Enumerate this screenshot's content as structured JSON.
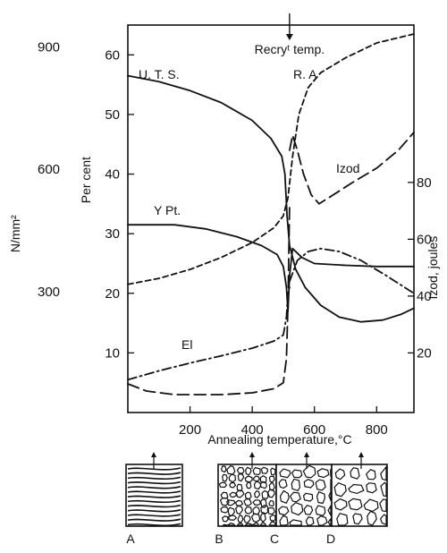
{
  "chart_data": {
    "type": "line",
    "xlabel": "Annealing temperature,°C",
    "xlim": [
      0,
      920
    ],
    "x_ticks": [
      200,
      400,
      600,
      800
    ],
    "left_axis_percent": {
      "label": "Per cent",
      "ylim": [
        0,
        65
      ],
      "ticks": [
        10,
        20,
        30,
        40,
        50,
        60
      ]
    },
    "left_axis_stress": {
      "label": "N/mm²",
      "ticks": [
        300,
        600,
        900
      ]
    },
    "right_axis": {
      "label": "Izod, joules",
      "ticks": [
        20,
        40,
        60,
        80
      ]
    },
    "annotation": {
      "text": "Recryᵗ temp.",
      "x": 520
    },
    "series": [
      {
        "name": "U. T. S.",
        "axis": "percent",
        "style": "solid",
        "points": [
          [
            0,
            56.5
          ],
          [
            100,
            55.5
          ],
          [
            200,
            54
          ],
          [
            300,
            52
          ],
          [
            400,
            49
          ],
          [
            460,
            46
          ],
          [
            495,
            43
          ],
          [
            505,
            40
          ],
          [
            512,
            33
          ],
          [
            520,
            28
          ],
          [
            540,
            24
          ],
          [
            570,
            21
          ],
          [
            620,
            18
          ],
          [
            680,
            16
          ],
          [
            750,
            15.2
          ],
          [
            820,
            15.5
          ],
          [
            880,
            16.5
          ],
          [
            920,
            17.5
          ]
        ]
      },
      {
        "name": "Y Pt.",
        "axis": "percent",
        "style": "solid",
        "points": [
          [
            0,
            31.5
          ],
          [
            150,
            31.5
          ],
          [
            250,
            30.8
          ],
          [
            350,
            29.5
          ],
          [
            430,
            28
          ],
          [
            480,
            26.5
          ],
          [
            500,
            24.5
          ],
          [
            510,
            21
          ],
          [
            515,
            17
          ],
          [
            520,
            23
          ],
          [
            530,
            27.5
          ],
          [
            560,
            26
          ],
          [
            600,
            25
          ],
          [
            700,
            24.7
          ],
          [
            800,
            24.5
          ],
          [
            920,
            24.5
          ]
        ]
      },
      {
        "name": "R. A",
        "axis": "percent",
        "style": "short-dash",
        "points": [
          [
            0,
            21.5
          ],
          [
            100,
            22.5
          ],
          [
            200,
            24
          ],
          [
            300,
            26
          ],
          [
            400,
            28.5
          ],
          [
            470,
            31
          ],
          [
            500,
            33
          ],
          [
            515,
            36
          ],
          [
            530,
            43
          ],
          [
            550,
            50
          ],
          [
            580,
            54.5
          ],
          [
            620,
            57
          ],
          [
            700,
            59.5
          ],
          [
            800,
            62
          ],
          [
            920,
            63.5
          ]
        ]
      },
      {
        "name": "Izod",
        "axis": "percent",
        "style": "long-dash",
        "points": [
          [
            520,
            44
          ],
          [
            530,
            46.5
          ],
          [
            545,
            44
          ],
          [
            565,
            40
          ],
          [
            590,
            36.5
          ],
          [
            615,
            35
          ],
          [
            660,
            36.5
          ],
          [
            720,
            38.5
          ],
          [
            800,
            41
          ],
          [
            870,
            44
          ],
          [
            920,
            47
          ]
        ]
      },
      {
        "name": "",
        "axis": "percent",
        "style": "dash-dot",
        "points": [
          [
            520,
            22
          ],
          [
            545,
            25.5
          ],
          [
            580,
            27
          ],
          [
            620,
            27.5
          ],
          [
            680,
            27
          ],
          [
            750,
            25.5
          ],
          [
            830,
            23
          ],
          [
            920,
            20
          ]
        ]
      },
      {
        "name": "El",
        "axis": "percent",
        "style": "dash-dot",
        "points": [
          [
            0,
            5.5
          ],
          [
            100,
            7
          ],
          [
            200,
            8.3
          ],
          [
            300,
            9.5
          ],
          [
            400,
            10.8
          ],
          [
            470,
            12
          ],
          [
            500,
            13
          ],
          [
            510,
            16
          ],
          [
            515,
            20
          ],
          [
            520,
            21
          ]
        ]
      },
      {
        "name": "",
        "axis": "percent",
        "style": "long-dash",
        "points": [
          [
            0,
            4.8
          ],
          [
            60,
            3.6
          ],
          [
            150,
            3
          ],
          [
            300,
            3
          ],
          [
            400,
            3.3
          ],
          [
            470,
            4
          ],
          [
            500,
            5
          ],
          [
            510,
            9
          ],
          [
            515,
            18
          ],
          [
            518,
            28
          ],
          [
            520,
            35
          ]
        ]
      }
    ],
    "microstructures": [
      "A",
      "B",
      "C",
      "D"
    ]
  }
}
